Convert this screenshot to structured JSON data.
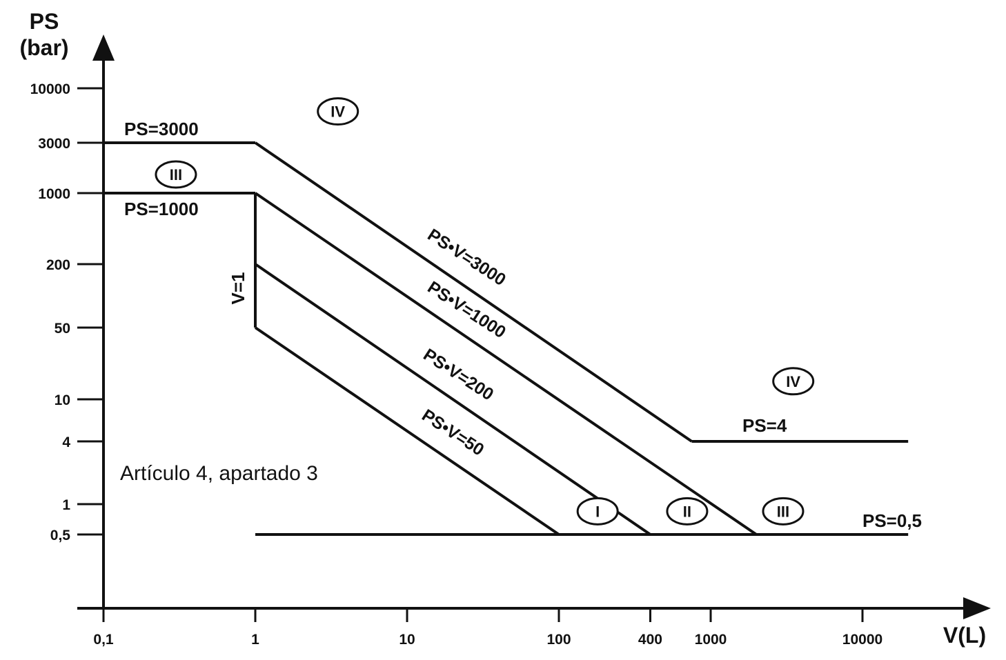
{
  "chart_data": {
    "type": "line",
    "title": "",
    "xlabel": "V(L)",
    "ylabel_line1": "PS",
    "ylabel_line2": "(bar)",
    "x_scale": "log",
    "y_scale": "log",
    "x_ticks": [
      {
        "value": 0.1,
        "label": "0,1"
      },
      {
        "value": 1,
        "label": "1"
      },
      {
        "value": 10,
        "label": "10"
      },
      {
        "value": 100,
        "label": "100"
      },
      {
        "value": 400,
        "label": "400"
      },
      {
        "value": 1000,
        "label": "1000"
      },
      {
        "value": 10000,
        "label": "10000"
      }
    ],
    "y_ticks": [
      {
        "value": 0.5,
        "label": "0,5"
      },
      {
        "value": 1,
        "label": "1"
      },
      {
        "value": 4,
        "label": "4"
      },
      {
        "value": 10,
        "label": "10"
      },
      {
        "value": 50,
        "label": "50"
      },
      {
        "value": 200,
        "label": "200"
      },
      {
        "value": 1000,
        "label": "1000"
      },
      {
        "value": 3000,
        "label": "3000"
      },
      {
        "value": 10000,
        "label": "10000"
      }
    ],
    "series": [
      {
        "name": "PS=3000",
        "points": [
          [
            0.1,
            3000
          ],
          [
            1,
            3000
          ]
        ]
      },
      {
        "name": "PS=1000",
        "points": [
          [
            0.1,
            1000
          ],
          [
            1,
            1000
          ]
        ]
      },
      {
        "name": "V=1",
        "points": [
          [
            1,
            50
          ],
          [
            1,
            1000
          ]
        ]
      },
      {
        "name": "PS•V=3000",
        "points": [
          [
            1,
            3000
          ],
          [
            750,
            4
          ]
        ]
      },
      {
        "name": "PS•V=1000",
        "points": [
          [
            1,
            1000
          ],
          [
            2000,
            0.5
          ]
        ]
      },
      {
        "name": "PS•V=200",
        "points": [
          [
            1,
            200
          ],
          [
            400,
            0.5
          ]
        ]
      },
      {
        "name": "PS•V=50",
        "points": [
          [
            1,
            50
          ],
          [
            100,
            0.5
          ]
        ]
      },
      {
        "name": "PS=4",
        "points": [
          [
            750,
            4
          ],
          [
            20000,
            4
          ]
        ]
      },
      {
        "name": "PS=0,5",
        "points": [
          [
            1,
            0.5
          ],
          [
            20000,
            0.5
          ]
        ]
      }
    ],
    "annotations": {
      "ps3000": "PS=3000",
      "ps1000": "PS=1000",
      "v1": "V=1",
      "psv3000": "PS•V=3000",
      "psv1000": "PS•V=1000",
      "psv200": "PS•V=200",
      "psv50": "PS•V=50",
      "ps4": "PS=4",
      "ps05": "PS=0,5",
      "note": "Artículo 4, apartado 3"
    },
    "categories": [
      {
        "label": "IV",
        "at": [
          3.5,
          6000
        ]
      },
      {
        "label": "III",
        "at": [
          0.3,
          1500
        ]
      },
      {
        "label": "IV",
        "at": [
          3500,
          15
        ]
      },
      {
        "label": "I",
        "at": [
          180,
          0.85
        ]
      },
      {
        "label": "II",
        "at": [
          700,
          0.85
        ]
      },
      {
        "label": "III",
        "at": [
          3000,
          0.85
        ]
      }
    ],
    "grid": false,
    "legend": "none"
  }
}
